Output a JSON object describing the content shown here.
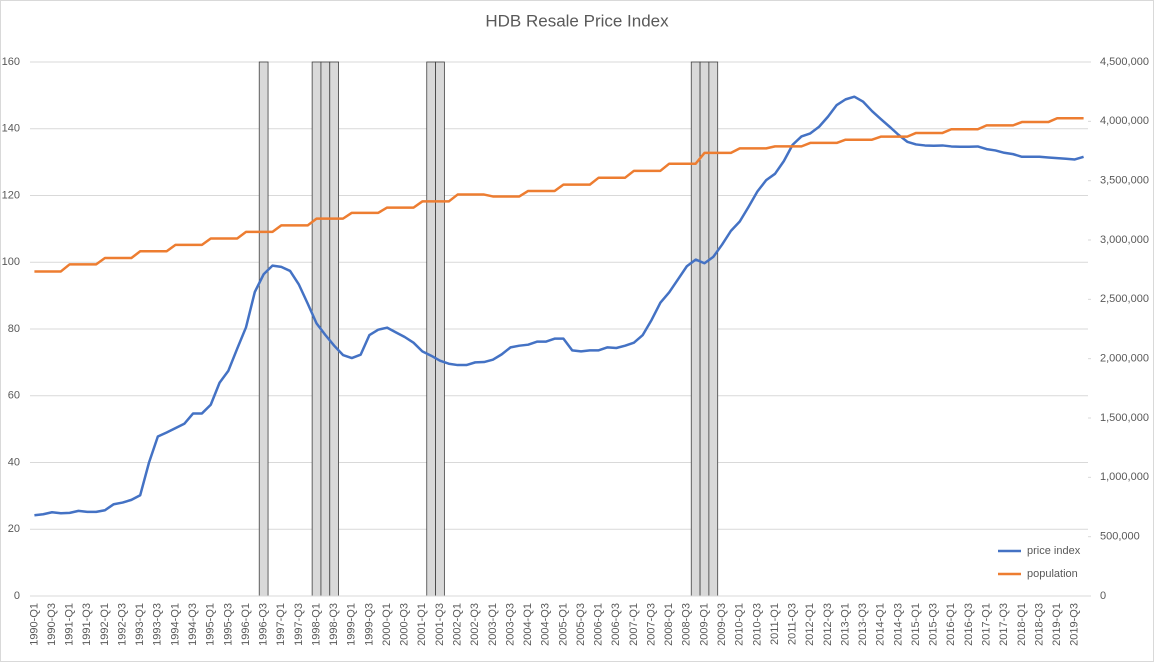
{
  "chart_data": {
    "type": "line",
    "title": "HDB Resale Price Index",
    "categories": [
      "1990-Q1",
      null,
      "1990-Q3",
      null,
      "1991-Q1",
      null,
      "1991-Q3",
      null,
      "1992-Q1",
      null,
      "1992-Q3",
      null,
      "1993-Q1",
      null,
      "1993-Q3",
      null,
      "1994-Q1",
      null,
      "1994-Q3",
      null,
      "1995-Q1",
      null,
      "1995-Q3",
      null,
      "1996-Q1",
      null,
      "1996-Q3",
      null,
      "1997-Q1",
      null,
      "1997-Q3",
      null,
      "1998-Q1",
      null,
      "1998-Q3",
      null,
      "1999-Q1",
      null,
      "1999-Q3",
      null,
      "2000-Q1",
      null,
      "2000-Q3",
      null,
      "2001-Q1",
      null,
      "2001-Q3",
      null,
      "2002-Q1",
      null,
      "2002-Q3",
      null,
      "2003-Q1",
      null,
      "2003-Q3",
      null,
      "2004-Q1",
      null,
      "2004-Q3",
      null,
      "2005-Q1",
      null,
      "2005-Q3",
      null,
      "2006-Q1",
      null,
      "2006-Q3",
      null,
      "2007-Q1",
      null,
      "2007-Q3",
      null,
      "2008-Q1",
      null,
      "2008-Q3",
      null,
      "2009-Q1",
      null,
      "2009-Q3",
      null,
      "2010-Q1",
      null,
      "2010-Q3",
      null,
      "2011-Q1",
      null,
      "2011-Q3",
      null,
      "2012-Q1",
      null,
      "2012-Q3",
      null,
      "2013-Q1",
      null,
      "2013-Q3",
      null,
      "2014-Q1",
      null,
      "2014-Q3",
      null,
      "2015-Q1",
      null,
      "2015-Q3",
      null,
      "2016-Q1",
      null,
      "2016-Q3",
      null,
      "2017-Q1",
      null,
      "2017-Q3",
      null,
      "2018-Q1",
      null,
      "2018-Q3",
      null,
      "2019-Q1",
      null,
      "2019-Q3",
      null
    ],
    "series": [
      {
        "type": "bar",
        "color": "#d9d9d9",
        "values": [
          null,
          null,
          null,
          null,
          null,
          null,
          null,
          null,
          null,
          null,
          null,
          null,
          null,
          null,
          null,
          null,
          null,
          null,
          null,
          null,
          null,
          null,
          null,
          null,
          null,
          null,
          160,
          null,
          null,
          null,
          null,
          null,
          160,
          160,
          160,
          null,
          null,
          null,
          null,
          null,
          null,
          null,
          null,
          null,
          null,
          160,
          160,
          null,
          null,
          null,
          null,
          null,
          null,
          null,
          null,
          null,
          null,
          null,
          null,
          null,
          null,
          null,
          null,
          null,
          null,
          null,
          null,
          null,
          null,
          null,
          null,
          null,
          null,
          null,
          null,
          160,
          160,
          160,
          null,
          null,
          null,
          null,
          null,
          null,
          null,
          null,
          null,
          null,
          null,
          null,
          null,
          null,
          null,
          null,
          null,
          null,
          null,
          null,
          null,
          null,
          null,
          null,
          null,
          null,
          null,
          null,
          null,
          null,
          null,
          null,
          null,
          null,
          null,
          null,
          null,
          null,
          null,
          null,
          null,
          null
        ]
      },
      {
        "name": "price index",
        "color": "#4472c4",
        "values": [
          24.2,
          24.5,
          25.1,
          24.8,
          24.9,
          25.5,
          25.2,
          25.2,
          25.7,
          27.5,
          28.0,
          28.8,
          30.2,
          40.0,
          47.8,
          49.0,
          50.3,
          51.6,
          54.7,
          54.7,
          57.3,
          63.9,
          67.5,
          74.1,
          80.5,
          91.1,
          96.4,
          99.0,
          98.6,
          97.4,
          93.3,
          87.6,
          81.7,
          78.2,
          75.0,
          72.2,
          71.3,
          72.3,
          78.2,
          79.8,
          80.4,
          79.0,
          77.6,
          75.9,
          73.3,
          72.0,
          70.5,
          69.6,
          69.2,
          69.2,
          70.0,
          70.1,
          70.8,
          72.4,
          74.5,
          75.0,
          75.3,
          76.2,
          76.2,
          77.1,
          77.1,
          73.6,
          73.3,
          73.6,
          73.6,
          74.5,
          74.3,
          75.0,
          75.9,
          78.2,
          82.7,
          87.9,
          91.0,
          94.9,
          98.8,
          100.8,
          99.7,
          101.6,
          105.3,
          109.4,
          112.2,
          116.6,
          121.2,
          124.6,
          126.5,
          130.3,
          135.2,
          137.7,
          138.6,
          140.6,
          143.6,
          147.1,
          148.8,
          149.6,
          148.1,
          145.3,
          142.9,
          140.6,
          138.2,
          136.1,
          135.3,
          135.0,
          134.9,
          135.0,
          134.7,
          134.6,
          134.6,
          134.7,
          133.9,
          133.5,
          132.8,
          132.4,
          131.6,
          131.6,
          131.6,
          131.4,
          131.2,
          131.0,
          130.8,
          131.6
        ]
      },
      {
        "name": "population",
        "color": "#ed7d31",
        "axis": "y2",
        "values": [
          2735000,
          2735000,
          2735000,
          2735000,
          2795000,
          2795000,
          2795000,
          2795000,
          2848000,
          2848000,
          2848000,
          2848000,
          2905000,
          2905000,
          2905000,
          2905000,
          2959000,
          2959000,
          2959000,
          2959000,
          3013000,
          3013000,
          3013000,
          3013000,
          3068000,
          3068000,
          3068000,
          3068000,
          3123000,
          3123000,
          3123000,
          3123000,
          3180000,
          3180000,
          3180000,
          3180000,
          3229000,
          3229000,
          3229000,
          3229000,
          3273000,
          3273000,
          3273000,
          3273000,
          3325000,
          3325000,
          3325000,
          3325000,
          3383000,
          3383000,
          3383000,
          3383000,
          3367000,
          3367000,
          3367000,
          3367000,
          3413000,
          3413000,
          3413000,
          3413000,
          3467000,
          3467000,
          3467000,
          3467000,
          3525000,
          3525000,
          3525000,
          3525000,
          3583000,
          3583000,
          3583000,
          3583000,
          3643000,
          3643000,
          3643000,
          3643000,
          3734000,
          3734000,
          3734000,
          3734000,
          3772000,
          3772000,
          3772000,
          3772000,
          3789000,
          3789000,
          3789000,
          3789000,
          3818000,
          3818000,
          3818000,
          3818000,
          3845000,
          3845000,
          3845000,
          3845000,
          3871000,
          3871000,
          3871000,
          3871000,
          3902000,
          3902000,
          3902000,
          3902000,
          3933000,
          3933000,
          3933000,
          3933000,
          3966000,
          3966000,
          3966000,
          3966000,
          3994000,
          3994000,
          3994000,
          3994000,
          4026000,
          4026000,
          4026000,
          4026000
        ]
      }
    ],
    "ylim": [
      0,
      160
    ],
    "yticks": [
      0,
      20,
      40,
      60,
      80,
      100,
      120,
      140,
      160
    ],
    "y2lim": [
      0,
      4500000
    ],
    "y2ticks": [
      0,
      {
        "value": 500000,
        "label": "500,000"
      },
      {
        "value": 1000000,
        "label": "1,000,000"
      },
      {
        "value": 1500000,
        "label": "1,500,000"
      },
      {
        "value": 2000000,
        "label": "2,000,000"
      },
      {
        "value": 2500000,
        "label": "2,500,000"
      },
      {
        "value": 3000000,
        "label": "3,000,000"
      },
      {
        "value": 3500000,
        "label": "3,500,000"
      },
      {
        "value": 4000000,
        "label": "4,000,000"
      },
      {
        "value": 4500000,
        "label": "4,500,000"
      }
    ],
    "grid": true,
    "legend": "lower right"
  }
}
